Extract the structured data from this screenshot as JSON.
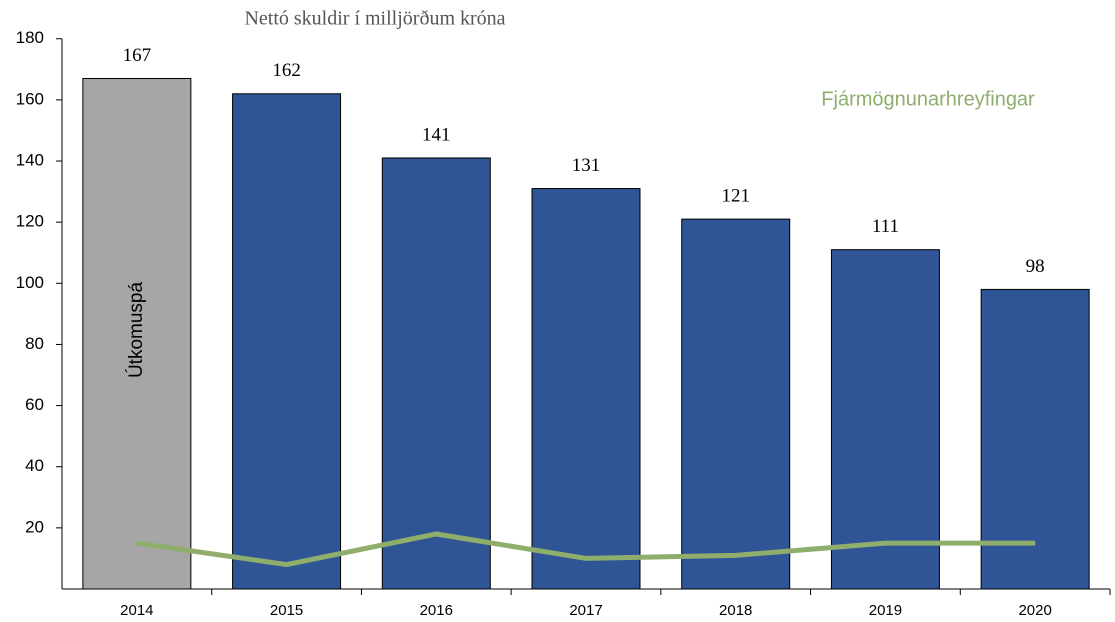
{
  "chart_data": {
    "type": "bar",
    "title": "Nettó skuldir í milljörðum króna",
    "categories": [
      "2014",
      "2015",
      "2016",
      "2017",
      "2018",
      "2019",
      "2020"
    ],
    "series": [
      {
        "type": "bar",
        "colors": [
          "#a6a6a6",
          "#2f5597",
          "#2f5597",
          "#2f5597",
          "#2f5597",
          "#2f5597",
          "#2f5597"
        ],
        "values": [
          167,
          162,
          141,
          131,
          121,
          111,
          98
        ]
      },
      {
        "type": "line",
        "name": "Fjármögnunarhreyfingar",
        "color": "#8fae6b",
        "values": [
          15,
          8,
          18,
          10,
          11,
          15,
          15
        ]
      }
    ],
    "annotation": "Útkomuspá",
    "ylim": [
      0,
      180
    ],
    "yticks": [
      20,
      40,
      60,
      80,
      100,
      120,
      140,
      160,
      180
    ],
    "legend": "upper right",
    "grid": false
  }
}
